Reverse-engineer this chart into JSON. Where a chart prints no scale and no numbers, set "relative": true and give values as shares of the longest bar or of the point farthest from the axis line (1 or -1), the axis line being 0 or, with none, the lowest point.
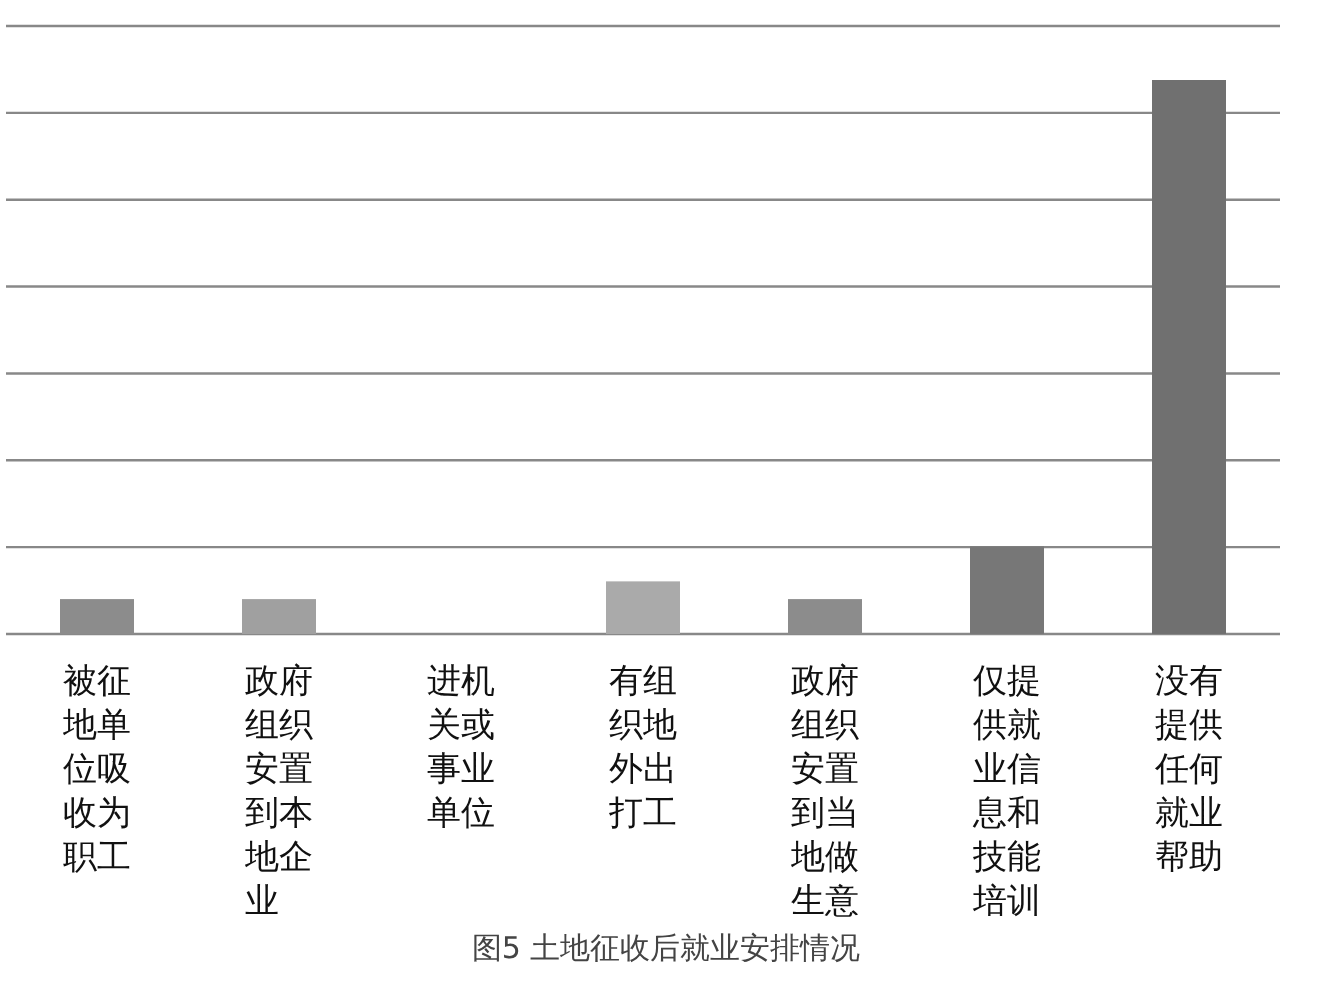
{
  "chart_data": {
    "type": "bar",
    "title": "图5 土地征收后就业安排情况",
    "categories": [
      "被征地单位吸收为职工",
      "政府组织安置到本地企业",
      "进机关或事业单位",
      "有组织地外出打工",
      "政府组织安置到当地做生意",
      "仅提供就业信息和技能培训",
      "没有提供任何就业帮助"
    ],
    "values": [
      0.063,
      0.063,
      0,
      0.095,
      0.063,
      0.158,
      1
    ],
    "colors": [
      "#8c8c8c",
      "#a0a0a0",
      "#a0a0a0",
      "#aaaaaa",
      "#8c8c8c",
      "#777777",
      "#707070"
    ],
    "relative": true,
    "grid": "y"
  }
}
